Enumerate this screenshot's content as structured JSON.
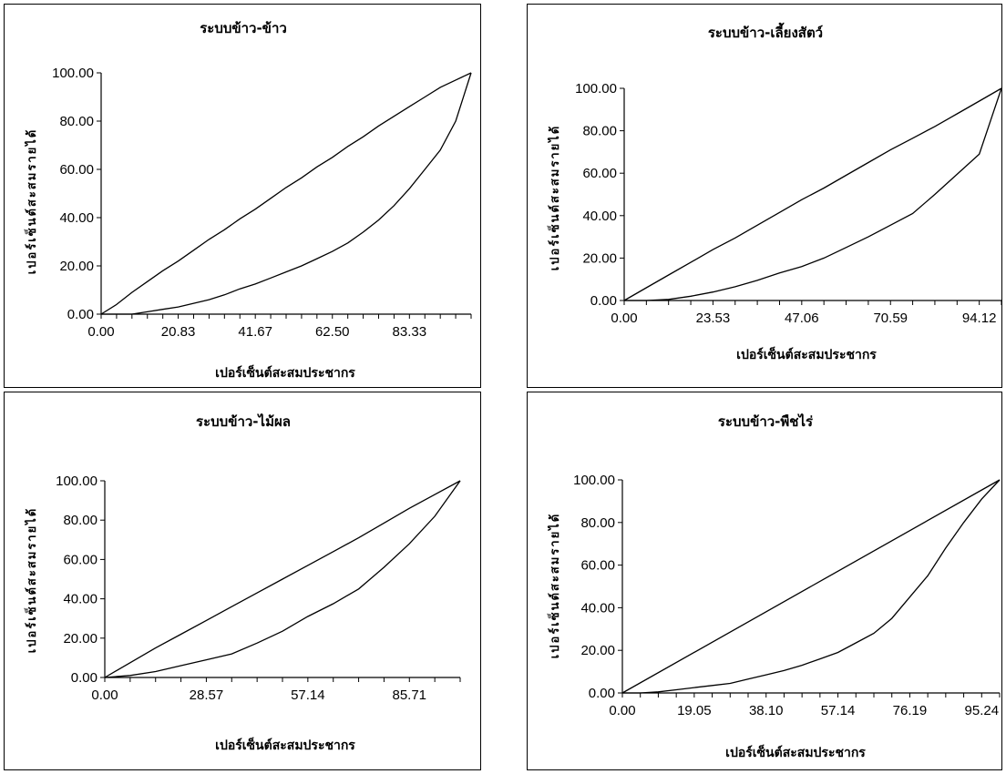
{
  "chart_data": [
    {
      "type": "line",
      "title": "ระบบข้าว-ข้าว",
      "xlabel": "เปอร์เซ็นต์สะสมประชากร",
      "ylabel": "เปอร์เซ็นต์สะสมรายได้",
      "xlim": [
        0,
        100
      ],
      "ylim": [
        0,
        100
      ],
      "xticks": [
        "0.00",
        "20.83",
        "41.67",
        "62.50",
        "83.33"
      ],
      "yticks": [
        "0.00",
        "20.00",
        "40.00",
        "60.00",
        "80.00",
        "100.00"
      ],
      "grid": false,
      "legend": "none",
      "series": [
        {
          "x": [
            0,
            4.17,
            8.33,
            12.5,
            16.67,
            20.83,
            25,
            29.17,
            33.33,
            37.5,
            41.67,
            45.83,
            50,
            54.17,
            58.33,
            62.5,
            66.67,
            70.83,
            75,
            79.17,
            83.33,
            87.5,
            91.67,
            95.83,
            100
          ],
          "y": [
            0,
            4,
            9,
            13.5,
            18,
            22,
            26.5,
            31,
            35,
            39.5,
            43.5,
            48,
            52.5,
            56.5,
            61,
            65,
            69.5,
            73.5,
            78,
            82,
            86,
            90,
            94,
            97,
            100
          ]
        },
        {
          "x": [
            0,
            4.17,
            8.33,
            12.5,
            16.67,
            20.83,
            25,
            29.17,
            33.33,
            37.5,
            41.67,
            45.83,
            50,
            54.17,
            58.33,
            62.5,
            66.67,
            70.83,
            75,
            79.17,
            83.33,
            87.5,
            91.67,
            95.83,
            100
          ],
          "y": [
            0,
            0,
            0,
            1,
            2,
            3,
            4.5,
            6,
            8,
            10.5,
            12.5,
            15,
            17.5,
            20,
            23,
            26,
            29.5,
            34,
            39,
            45,
            52,
            60,
            68,
            80,
            100
          ]
        }
      ]
    },
    {
      "type": "line",
      "title": "ระบบข้าว-เลี้ยงสัตว์",
      "xlabel": "เปอร์เซ็นต์สะสมประชากร",
      "ylabel": "เปอร์เซ็นต์สะสมรายได้",
      "xlim": [
        0,
        100
      ],
      "ylim": [
        0,
        100
      ],
      "xticks": [
        "0.00",
        "23.53",
        "47.06",
        "70.59",
        "94.12"
      ],
      "yticks": [
        "0.00",
        "20.00",
        "40.00",
        "60.00",
        "80.00",
        "100.00"
      ],
      "grid": false,
      "legend": "none",
      "series": [
        {
          "x": [
            0,
            5.88,
            11.76,
            17.65,
            23.53,
            29.41,
            35.29,
            41.18,
            47.06,
            52.94,
            58.82,
            64.71,
            70.59,
            76.47,
            82.35,
            88.24,
            94.12,
            100
          ],
          "y": [
            0,
            6,
            12,
            18,
            24,
            29.5,
            35.5,
            41.5,
            47.5,
            53,
            59,
            65,
            71,
            76.5,
            82,
            88,
            94,
            100
          ]
        },
        {
          "x": [
            0,
            5.88,
            11.76,
            17.65,
            23.53,
            29.41,
            35.29,
            41.18,
            47.06,
            52.94,
            58.82,
            64.71,
            70.59,
            76.47,
            82.35,
            88.24,
            94.12,
            100
          ],
          "y": [
            0,
            0,
            0.5,
            2,
            4,
            6.5,
            9.5,
            13,
            16,
            20,
            25,
            30,
            35.5,
            41,
            50,
            59.5,
            69,
            100
          ]
        }
      ]
    },
    {
      "type": "line",
      "title": "ระบบข้าว-ไม้ผล",
      "xlabel": "เปอร์เซ็นต์สะสมประชากร",
      "ylabel": "เปอร์เซ็นต์สะสมรายได้",
      "xlim": [
        0,
        100
      ],
      "ylim": [
        0,
        100
      ],
      "xticks": [
        "0.00",
        "28.57",
        "57.14",
        "85.71"
      ],
      "yticks": [
        "0.00",
        "20.00",
        "40.00",
        "60.00",
        "80.00",
        "100.00"
      ],
      "grid": false,
      "legend": "none",
      "series": [
        {
          "x": [
            0,
            7.14,
            14.29,
            21.43,
            28.57,
            35.71,
            42.86,
            50,
            57.14,
            64.29,
            71.43,
            78.57,
            85.71,
            92.86,
            100
          ],
          "y": [
            0,
            7.5,
            15,
            22,
            29,
            36,
            43,
            50,
            57,
            64,
            71,
            78.5,
            86,
            93,
            100
          ]
        },
        {
          "x": [
            0,
            7.14,
            14.29,
            21.43,
            28.57,
            35.71,
            42.86,
            50,
            57.14,
            64.29,
            71.43,
            78.57,
            85.71,
            92.86,
            100
          ],
          "y": [
            0,
            1,
            3,
            6,
            9,
            12,
            17.5,
            23.5,
            31,
            37.5,
            45,
            56,
            68,
            82,
            100
          ]
        }
      ]
    },
    {
      "type": "line",
      "title": "ระบบข้าว-พืชไร่",
      "xlabel": "เปอร์เซ็นต์สะสมประชากร",
      "ylabel": "เปอร์เซ็นต์สะสมรายได้",
      "xlim": [
        0,
        100
      ],
      "ylim": [
        0,
        100
      ],
      "xticks": [
        "0.00",
        "19.05",
        "38.10",
        "57.14",
        "76.19",
        "95.24"
      ],
      "yticks": [
        "0.00",
        "20.00",
        "40.00",
        "60.00",
        "80.00",
        "100.00"
      ],
      "grid": false,
      "legend": "none",
      "series": [
        {
          "x": [
            0,
            100
          ],
          "y": [
            0,
            100
          ]
        },
        {
          "x": [
            0,
            4.76,
            9.52,
            14.29,
            19.05,
            23.81,
            28.57,
            33.33,
            38.1,
            42.86,
            47.62,
            52.38,
            57.14,
            61.9,
            66.67,
            71.43,
            76.19,
            80.95,
            85.71,
            90.48,
            95.24,
            100
          ],
          "y": [
            0,
            0,
            0.5,
            1.5,
            2.5,
            3.5,
            4.5,
            6.5,
            8.5,
            10.5,
            13,
            16,
            19,
            23.5,
            28,
            35,
            45,
            55,
            68,
            80,
            91,
            100
          ]
        }
      ]
    }
  ]
}
